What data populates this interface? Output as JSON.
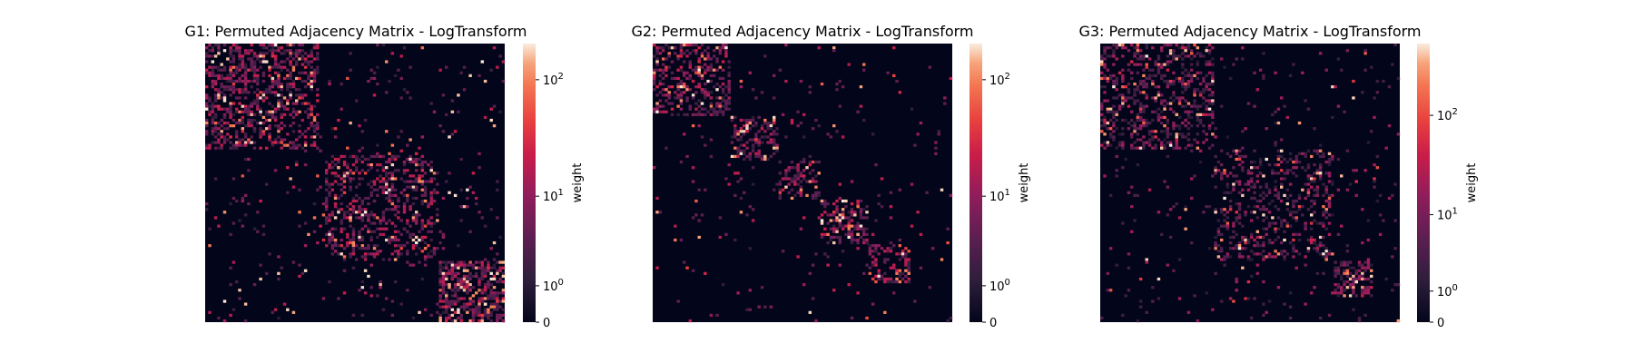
{
  "chart_data": [
    {
      "type": "heatmap",
      "title": "G1: Permuted Adjacency Matrix - LogTransform",
      "n_nodes": 100,
      "scale": "log",
      "colorbar": {
        "label": "weight",
        "ticks": [
          "0",
          "10^0",
          "10^1",
          "10^2"
        ],
        "tick_values": [
          0,
          1,
          10,
          100
        ],
        "vmax": 200
      },
      "blocks": [
        {
          "start": 0,
          "end": 38,
          "density": 0.42
        },
        {
          "start": 40,
          "end": 78,
          "density": 0.34
        },
        {
          "start": 78,
          "end": 100,
          "density": 0.62
        }
      ],
      "background_density": 0.04,
      "grid": false,
      "xlabel": "",
      "ylabel": ""
    },
    {
      "type": "heatmap",
      "title": "G2: Permuted Adjacency Matrix - LogTransform",
      "n_nodes": 100,
      "scale": "log",
      "colorbar": {
        "label": "weight",
        "ticks": [
          "0",
          "10^0",
          "10^1",
          "10^2"
        ],
        "tick_values": [
          0,
          1,
          10,
          100
        ],
        "vmax": 200
      },
      "blocks": [
        {
          "start": 0,
          "end": 26,
          "density": 0.4
        },
        {
          "start": 26,
          "end": 42,
          "density": 0.45
        },
        {
          "start": 42,
          "end": 56,
          "density": 0.4
        },
        {
          "start": 56,
          "end": 72,
          "density": 0.42
        },
        {
          "start": 72,
          "end": 86,
          "density": 0.35
        }
      ],
      "background_density": 0.025,
      "grid": false,
      "xlabel": "",
      "ylabel": ""
    },
    {
      "type": "heatmap",
      "title": "G3: Permuted Adjacency Matrix - LogTransform",
      "n_nodes": 100,
      "scale": "log",
      "colorbar": {
        "label": "weight",
        "ticks": [
          "0",
          "10^0",
          "10^1",
          "10^2"
        ],
        "tick_values": [
          0,
          1,
          10,
          100
        ],
        "vmax": 500
      },
      "blocks": [
        {
          "start": 0,
          "end": 38,
          "density": 0.36
        },
        {
          "start": 38,
          "end": 78,
          "density": 0.28
        },
        {
          "start": 78,
          "end": 91,
          "density": 0.6
        }
      ],
      "background_density": 0.035,
      "grid": false,
      "xlabel": "",
      "ylabel": ""
    }
  ]
}
